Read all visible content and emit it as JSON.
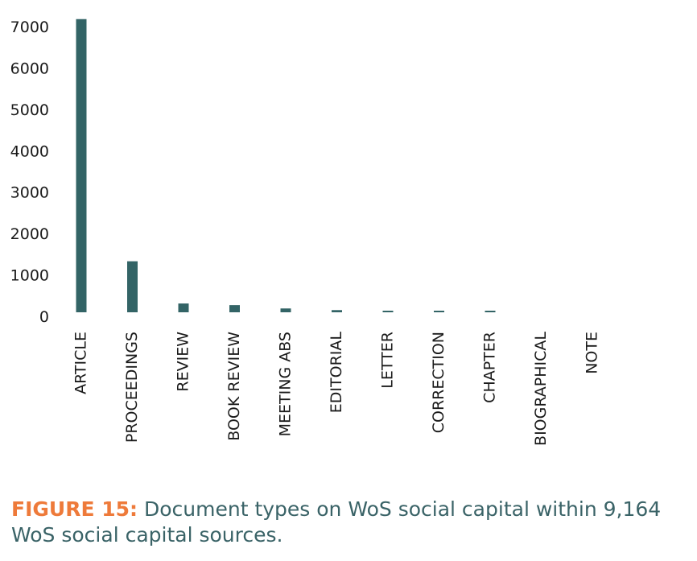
{
  "chart_data": {
    "type": "bar",
    "categories": [
      "ARTICLE",
      "PROCEEDINGS",
      "REVIEW",
      "BOOK REVIEW",
      "MEETING ABS",
      "EDITORIAL",
      "LETTER",
      "CORRECTION",
      "CHAPTER",
      "BIOGRAPHICAL",
      "NOTE"
    ],
    "values": [
      7180,
      1330,
      310,
      270,
      190,
      150,
      30,
      25,
      20,
      0,
      0
    ],
    "ylim": [
      0,
      7000
    ],
    "yticks": [
      0,
      1000,
      2000,
      3000,
      4000,
      5000,
      6000,
      7000
    ],
    "grid": false,
    "bar_color": "#336466"
  },
  "caption": {
    "label": "FIGURE 15:",
    "text": " Document types on WoS social capital within 9,164 WoS social capital sources."
  },
  "colors": {
    "bar": "#336466",
    "caption_label": "#ee7a3a",
    "caption_text": "#3a6367"
  }
}
